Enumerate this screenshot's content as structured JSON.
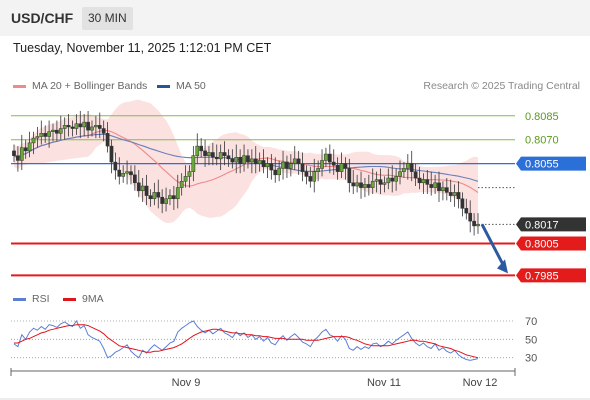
{
  "header": {
    "pair": "USD/CHF",
    "timeframe": "30 MIN"
  },
  "datetime": "Tuesday, November 11, 2025 1:12:01 PM CET",
  "legend": {
    "ma20": {
      "label": "MA 20 + Bollinger Bands",
      "color": "#ef8a8a"
    },
    "ma50": {
      "label": "MA 50",
      "color": "#27559c"
    }
  },
  "credit": "Research © 2025 Trading Central",
  "rsi_legend": {
    "rsi": {
      "label": "RSI",
      "color": "#5b7fd6"
    },
    "ma": {
      "label": "9MA",
      "color": "#e0141b"
    }
  },
  "chart_data": {
    "type": "candlestick",
    "price_range": [
      0.7979,
      0.8098
    ],
    "levels": [
      {
        "value": 0.8085,
        "label": "0.8085",
        "kind": "thin",
        "color": "#86bc48"
      },
      {
        "value": 0.807,
        "label": "0.8070",
        "kind": "thin",
        "color": "#86bc48"
      },
      {
        "value": 0.8055,
        "label": "0.8055",
        "kind": "pivot",
        "color": "#2b6fd8"
      },
      {
        "value": 0.8017,
        "label": "0.8017",
        "kind": "last",
        "color": "#333333"
      },
      {
        "value": 0.8005,
        "label": "0.8005",
        "kind": "support",
        "color": "#e31b1b"
      },
      {
        "value": 0.7985,
        "label": "0.7985",
        "kind": "support",
        "color": "#e31b1b"
      }
    ],
    "x_labels": [
      "Nov 9",
      "Nov 11",
      "Nov 12"
    ],
    "rsi_ticks": [
      "70",
      "50",
      "30"
    ],
    "rsi_range": [
      22,
      82
    ],
    "close": [
      0.806,
      0.8057,
      0.8065,
      0.8063,
      0.8068,
      0.8071,
      0.8072,
      0.8074,
      0.8072,
      0.8075,
      0.8076,
      0.8074,
      0.8077,
      0.8079,
      0.8078,
      0.8077,
      0.808,
      0.8078,
      0.8081,
      0.8076,
      0.8078,
      0.8079,
      0.8077,
      0.8074,
      0.8066,
      0.8056,
      0.8051,
      0.8047,
      0.8049,
      0.805,
      0.8048,
      0.8043,
      0.8038,
      0.8041,
      0.8035,
      0.8033,
      0.8037,
      0.8034,
      0.803,
      0.8033,
      0.8035,
      0.8033,
      0.804,
      0.8044,
      0.8047,
      0.805,
      0.806,
      0.8066,
      0.8063,
      0.806,
      0.8062,
      0.8059,
      0.8058,
      0.8062,
      0.806,
      0.8058,
      0.8056,
      0.8059,
      0.8055,
      0.806,
      0.8056,
      0.8058,
      0.8055,
      0.8057,
      0.8053,
      0.8055,
      0.8051,
      0.8048,
      0.8052,
      0.8056,
      0.8052,
      0.8055,
      0.8058,
      0.8055,
      0.805,
      0.8047,
      0.8044,
      0.805,
      0.8052,
      0.8057,
      0.8061,
      0.8056,
      0.8054,
      0.805,
      0.8055,
      0.8052,
      0.8043,
      0.8041,
      0.8043,
      0.804,
      0.8042,
      0.804,
      0.8044,
      0.8045,
      0.8042,
      0.8043,
      0.8046,
      0.8044,
      0.8047,
      0.805,
      0.8052,
      0.8055,
      0.805,
      0.8046,
      0.8043,
      0.8045,
      0.8042,
      0.804,
      0.8043,
      0.8038,
      0.804,
      0.8037,
      0.8035,
      0.8037,
      0.8033,
      0.8027,
      0.8024,
      0.8019,
      0.8016,
      0.8017
    ],
    "rsi": [
      45,
      42,
      55,
      50,
      58,
      62,
      60,
      64,
      61,
      66,
      65,
      63,
      67,
      69,
      66,
      64,
      70,
      62,
      65,
      55,
      52,
      50,
      48,
      40,
      30,
      32,
      36,
      38,
      41,
      44,
      37,
      33,
      30,
      38,
      35,
      40,
      44,
      41,
      38,
      42,
      46,
      48,
      58,
      62,
      65,
      68,
      70,
      64,
      60,
      57,
      60,
      56,
      59,
      62,
      57,
      55,
      52,
      58,
      54,
      57,
      52,
      55,
      50,
      53,
      48,
      52,
      46,
      44,
      50,
      54,
      49,
      53,
      56,
      52,
      47,
      45,
      42,
      49,
      53,
      58,
      61,
      55,
      53,
      48,
      54,
      50,
      40,
      38,
      42,
      39,
      42,
      40,
      45,
      46,
      42,
      44,
      48,
      45,
      49,
      52,
      55,
      58,
      51,
      46,
      43,
      46,
      42,
      40,
      45,
      38,
      41,
      37,
      35,
      38,
      33,
      30,
      28,
      27,
      28,
      29
    ],
    "rsi_ma": [
      46,
      46,
      48,
      50,
      51,
      53,
      55,
      57,
      58,
      60,
      61,
      62,
      63,
      64,
      65,
      65,
      66,
      66,
      66,
      65,
      63,
      61,
      59,
      56,
      52,
      49,
      46,
      43,
      42,
      41,
      40,
      39,
      38,
      37,
      36,
      36,
      37,
      37,
      38,
      39,
      40,
      41,
      43,
      45,
      48,
      51,
      54,
      56,
      58,
      59,
      60,
      61,
      61,
      60,
      59,
      58,
      57,
      57,
      56,
      56,
      55,
      55,
      54,
      54,
      53,
      53,
      52,
      51,
      51,
      51,
      50,
      50,
      50,
      50,
      50,
      49,
      49,
      49,
      49,
      50,
      51,
      52,
      53,
      53,
      53,
      53,
      52,
      50,
      49,
      47,
      45,
      44,
      43,
      43,
      43,
      43,
      43,
      44,
      45,
      46,
      47,
      48,
      49,
      49,
      48,
      48,
      47,
      46,
      45,
      43,
      42,
      41,
      40,
      38,
      37,
      35,
      33,
      32,
      31,
      30
    ],
    "arrow": {
      "from": 0.8017,
      "to": 0.7985
    }
  }
}
